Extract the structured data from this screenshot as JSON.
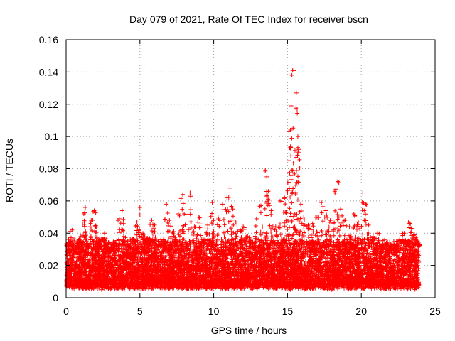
{
  "chart_data": {
    "type": "scatter",
    "title": "Day 079 of 2021, Rate Of TEC Index for receiver bscn",
    "xlabel": "GPS time / hours",
    "ylabel": "ROTI / TECUs",
    "xlim": [
      0,
      25
    ],
    "ylim": [
      0,
      0.16
    ],
    "grid": true,
    "marker": "+",
    "marker_color": "#ff0000",
    "xticks": [
      0,
      5,
      10,
      15,
      20,
      25
    ],
    "xtick_labels": [
      "0",
      "5",
      "10",
      "15",
      "20",
      "25"
    ],
    "yticks": [
      0,
      0.02,
      0.04,
      0.06,
      0.08,
      0.1,
      0.12,
      0.14,
      0.16
    ],
    "ytick_labels": [
      "0",
      "0.02",
      "0.04",
      "0.06",
      "0.08",
      "0.1",
      "0.12",
      "0.14",
      "0.16"
    ],
    "series": [
      {
        "name": "ROTI",
        "x": [
          0.1,
          0.25,
          0.4,
          0.6,
          0.8,
          1.0,
          1.2,
          1.3,
          1.5,
          1.7,
          1.9,
          2.0,
          2.1,
          2.3,
          2.6,
          2.8,
          3.0,
          3.3,
          3.6,
          3.8,
          3.9,
          4.2,
          4.5,
          4.8,
          5.0,
          5.2,
          5.5,
          5.8,
          6.0,
          6.3,
          6.6,
          6.8,
          7.0,
          7.3,
          7.6,
          7.9,
          8.0,
          8.4,
          8.7,
          9.0,
          9.3,
          9.6,
          9.9,
          10.0,
          10.3,
          10.6,
          10.9,
          11.1,
          11.3,
          11.5,
          11.8,
          12.0,
          12.3,
          12.6,
          12.9,
          13.2,
          13.5,
          13.6,
          13.7,
          13.9,
          14.2,
          14.5,
          14.8,
          15.0,
          15.1,
          15.15,
          15.2,
          15.25,
          15.3,
          15.35,
          15.5,
          15.6,
          15.65,
          15.7,
          15.75,
          15.9,
          16.1,
          16.4,
          16.7,
          17.0,
          17.3,
          17.6,
          17.9,
          18.2,
          18.4,
          18.6,
          18.9,
          19.2,
          19.5,
          19.8,
          20.1,
          20.3,
          20.5,
          20.8,
          21.1,
          21.4,
          21.7,
          22.0,
          22.3,
          22.6,
          22.9,
          23.2,
          23.4,
          23.6,
          23.9
        ],
        "y": [
          0.033,
          0.028,
          0.042,
          0.025,
          0.034,
          0.038,
          0.052,
          0.056,
          0.031,
          0.048,
          0.054,
          0.044,
          0.026,
          0.036,
          0.04,
          0.03,
          0.019,
          0.032,
          0.049,
          0.054,
          0.038,
          0.029,
          0.036,
          0.047,
          0.056,
          0.04,
          0.037,
          0.048,
          0.045,
          0.032,
          0.036,
          0.058,
          0.048,
          0.041,
          0.052,
          0.064,
          0.052,
          0.065,
          0.044,
          0.05,
          0.036,
          0.045,
          0.059,
          0.041,
          0.05,
          0.058,
          0.062,
          0.068,
          0.055,
          0.047,
          0.042,
          0.044,
          0.038,
          0.034,
          0.049,
          0.057,
          0.079,
          0.075,
          0.066,
          0.054,
          0.044,
          0.06,
          0.062,
          0.065,
          0.085,
          0.093,
          0.104,
          0.119,
          0.138,
          0.141,
          0.052,
          0.127,
          0.117,
          0.1,
          0.09,
          0.058,
          0.05,
          0.045,
          0.046,
          0.05,
          0.059,
          0.054,
          0.048,
          0.066,
          0.072,
          0.055,
          0.048,
          0.044,
          0.052,
          0.047,
          0.065,
          0.058,
          0.045,
          0.038,
          0.04,
          0.028,
          0.034,
          0.03,
          0.028,
          0.036,
          0.04,
          0.047,
          0.043,
          0.039,
          0.032
        ],
        "baseline_band": [
          0.005,
          0.033
        ]
      }
    ]
  }
}
